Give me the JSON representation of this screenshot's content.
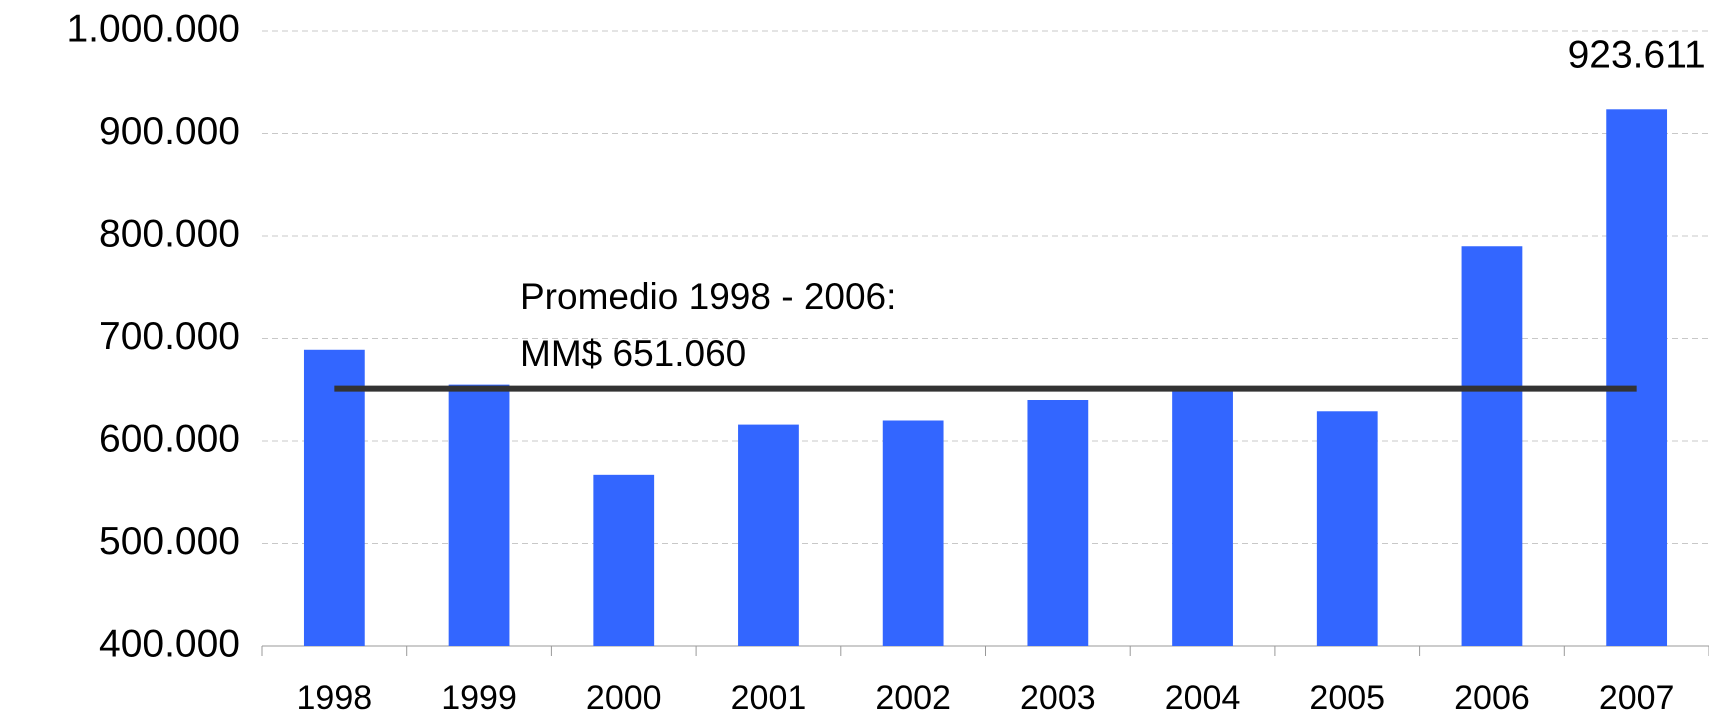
{
  "chart_data": {
    "type": "bar",
    "categories": [
      "1998",
      "1999",
      "2000",
      "2001",
      "2002",
      "2003",
      "2004",
      "2005",
      "2006",
      "2007"
    ],
    "values": [
      689000,
      655000,
      567000,
      616000,
      620000,
      640000,
      651000,
      629000,
      790000,
      923611
    ],
    "value_labels": [
      null,
      null,
      null,
      null,
      null,
      null,
      null,
      null,
      null,
      "923.611"
    ],
    "color": "#3366ff",
    "ylim": [
      400000,
      1000000
    ],
    "yticks": [
      {
        "value": 400000,
        "label": "400.000"
      },
      {
        "value": 500000,
        "label": "500.000"
      },
      {
        "value": 600000,
        "label": "600.000"
      },
      {
        "value": 700000,
        "label": "700.000"
      },
      {
        "value": 800000,
        "label": "800.000"
      },
      {
        "value": 900000,
        "label": "900.000"
      },
      {
        "value": 1000000,
        "label": "1.000.000"
      }
    ],
    "grid": true,
    "average": {
      "value": 651060,
      "color": "#333333",
      "label": [
        "Promedio 1998 - 2006:",
        "MM$ 651.060"
      ]
    }
  }
}
